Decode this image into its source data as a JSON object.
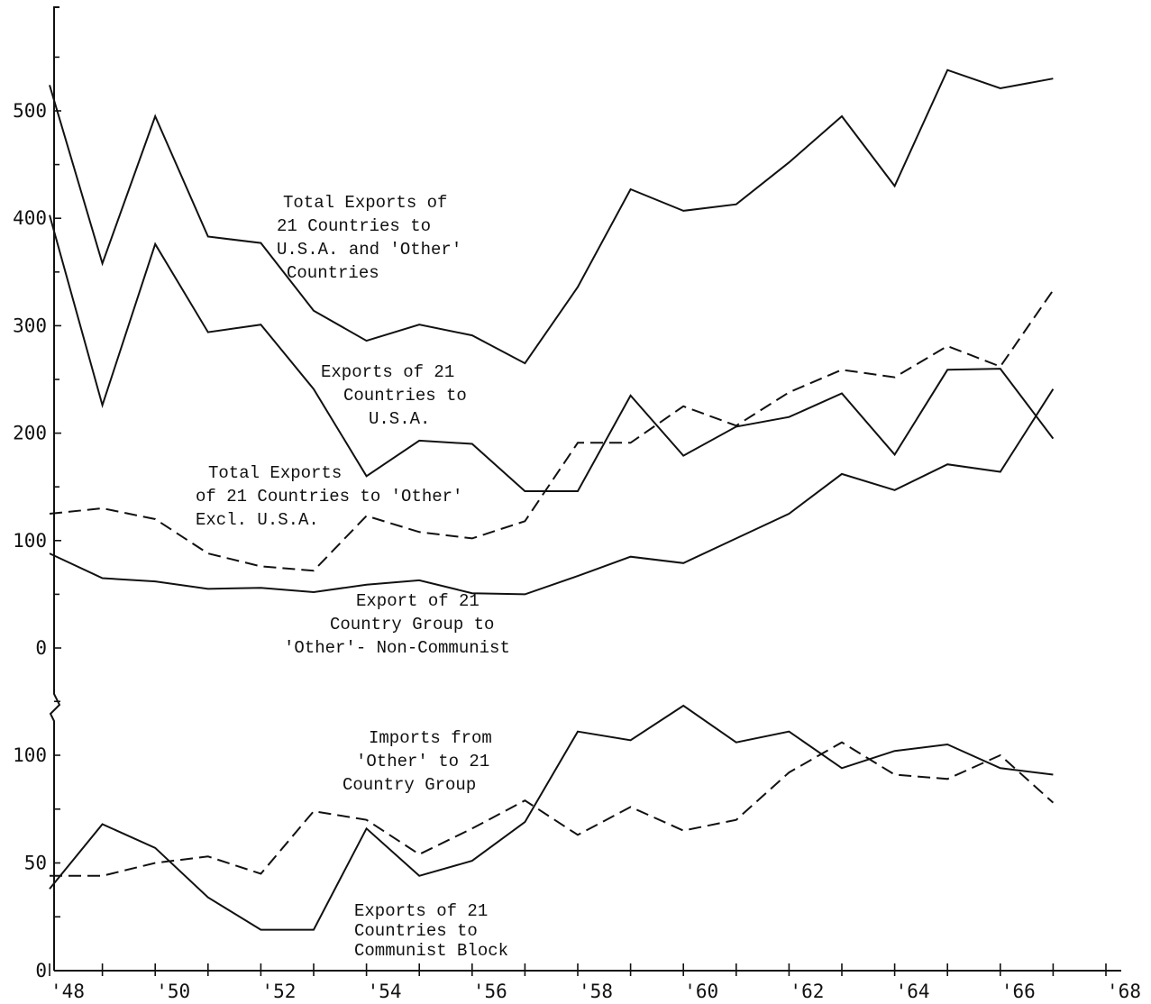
{
  "chart_data": [
    {
      "type": "line",
      "panel": "upper",
      "title": "",
      "xlabel": "",
      "ylabel": "",
      "x_ticks": [
        "'48",
        "'50",
        "'52",
        "'54",
        "'56",
        "'58",
        "'60",
        "'62",
        "'64",
        "'66",
        "'68"
      ],
      "y_ticks": [
        "0",
        "100",
        "200",
        "300",
        "400",
        "500"
      ],
      "xlim": [
        1948,
        1968
      ],
      "ylim": [
        0,
        580
      ],
      "grid": false,
      "x": [
        1948,
        1949,
        1950,
        1951,
        1952,
        1953,
        1954,
        1955,
        1956,
        1957,
        1958,
        1959,
        1960,
        1961,
        1962,
        1963,
        1964,
        1965,
        1966,
        1967
      ],
      "series": [
        {
          "name": "Total Exports of 21 Countries to U.S.A. and 'Other' Countries",
          "style": "solid",
          "values": [
            524,
            358,
            495,
            383,
            377,
            314,
            286,
            301,
            291,
            265,
            336,
            427,
            407,
            413,
            452,
            495,
            430,
            538,
            521,
            530
          ]
        },
        {
          "name": "Exports of 21 Countries to U.S.A.",
          "style": "solid",
          "values": [
            403,
            226,
            376,
            294,
            301,
            241,
            160,
            193,
            190,
            146,
            146,
            235,
            179,
            206,
            215,
            237,
            180,
            259,
            260,
            195
          ]
        },
        {
          "name": "Total Exports of 21 Countries to 'Other' Excl. U.S.A.",
          "style": "dashed",
          "values": [
            125,
            130,
            120,
            88,
            76,
            72,
            123,
            108,
            102,
            118,
            191,
            191,
            225,
            207,
            238,
            259,
            252,
            281,
            262,
            333
          ]
        },
        {
          "name": "Export of 21 Country Group to 'Other'- Non-Communist",
          "style": "solid",
          "values": [
            88,
            65,
            62,
            55,
            56,
            52,
            59,
            63,
            51,
            50,
            67,
            85,
            79,
            102,
            125,
            162,
            147,
            171,
            164,
            241
          ]
        }
      ]
    },
    {
      "type": "line",
      "panel": "lower",
      "title": "",
      "xlabel": "",
      "ylabel": "",
      "x_ticks": [
        "'48",
        "'50",
        "'52",
        "'54",
        "'56",
        "'58",
        "'60",
        "'62",
        "'64",
        "'66",
        "'68"
      ],
      "y_ticks": [
        "0",
        "50",
        "100"
      ],
      "xlim": [
        1948,
        1968
      ],
      "ylim": [
        0,
        120
      ],
      "grid": false,
      "x": [
        1948,
        1949,
        1950,
        1951,
        1952,
        1953,
        1954,
        1955,
        1956,
        1957,
        1958,
        1959,
        1960,
        1961,
        1962,
        1963,
        1964,
        1965,
        1966,
        1967
      ],
      "series": [
        {
          "name": "Imports from 'Other' to 21 Country Group",
          "style": "solid",
          "values": [
            38,
            68,
            57,
            34,
            19,
            19,
            66,
            44,
            51,
            69,
            111,
            107,
            123,
            106,
            111,
            94,
            102,
            105,
            94,
            91
          ]
        },
        {
          "name": "Exports of 21 Countries to Communist Block",
          "style": "dashed",
          "values": [
            44,
            44,
            50,
            53,
            45,
            74,
            70,
            54,
            66,
            79,
            63,
            76,
            65,
            70,
            92,
            106,
            91,
            89,
            100,
            78
          ]
        }
      ]
    }
  ],
  "annotations": {
    "total_exports": [
      "Total Exports of",
      "21 Countries to",
      "U.S.A. and 'Other'",
      "Countries"
    ],
    "exports_usa": [
      "Exports of 21",
      "Countries to",
      "U.S.A."
    ],
    "total_exports_other": [
      "Total Exports",
      "of 21 Countries to 'Other'",
      "Excl. U.S.A."
    ],
    "export_non_communist": [
      "Export of 21",
      "Country Group to",
      "'Other'- Non-Communist"
    ],
    "imports_from_other": [
      "Imports from",
      "'Other' to 21",
      "Country Group"
    ],
    "exports_communist": [
      "Exports of 21",
      "Countries to",
      "Communist Block"
    ]
  }
}
